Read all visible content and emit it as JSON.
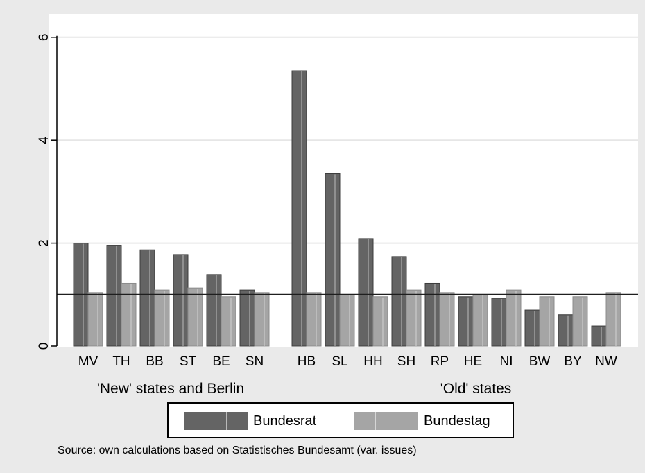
{
  "chart_data": {
    "type": "bar",
    "categories": [
      "MV",
      "TH",
      "BB",
      "ST",
      "BE",
      "SN",
      "HB",
      "SL",
      "HH",
      "SH",
      "RP",
      "HE",
      "NI",
      "BW",
      "BY",
      "NW"
    ],
    "groups": [
      {
        "label": "'New' states and Berlin",
        "categories": [
          "MV",
          "TH",
          "BB",
          "ST",
          "BE",
          "SN"
        ]
      },
      {
        "label": "'Old' states",
        "categories": [
          "HB",
          "SL",
          "HH",
          "SH",
          "RP",
          "HE",
          "NI",
          "BW",
          "BY",
          "NW"
        ]
      }
    ],
    "series": [
      {
        "name": "Bundesrat",
        "color": "#646464",
        "values": [
          2.0,
          1.96,
          1.87,
          1.78,
          1.39,
          1.09,
          5.35,
          3.35,
          2.09,
          1.74,
          1.22,
          0.96,
          0.93,
          0.7,
          0.61,
          0.39
        ]
      },
      {
        "name": "Bundestag",
        "color": "#a5a5a5",
        "values": [
          1.04,
          1.22,
          1.09,
          1.13,
          0.96,
          1.04,
          1.04,
          1.0,
          0.96,
          1.09,
          1.04,
          1.0,
          1.09,
          0.96,
          0.96,
          1.04
        ]
      }
    ],
    "yticks": [
      0,
      2,
      4,
      6
    ],
    "ylim": [
      0,
      6
    ],
    "reference_line": 1,
    "grid": true,
    "legend_position": "bottom",
    "source": "Source: own calculations based on Statistisches Bundesamt (var. issues)"
  }
}
